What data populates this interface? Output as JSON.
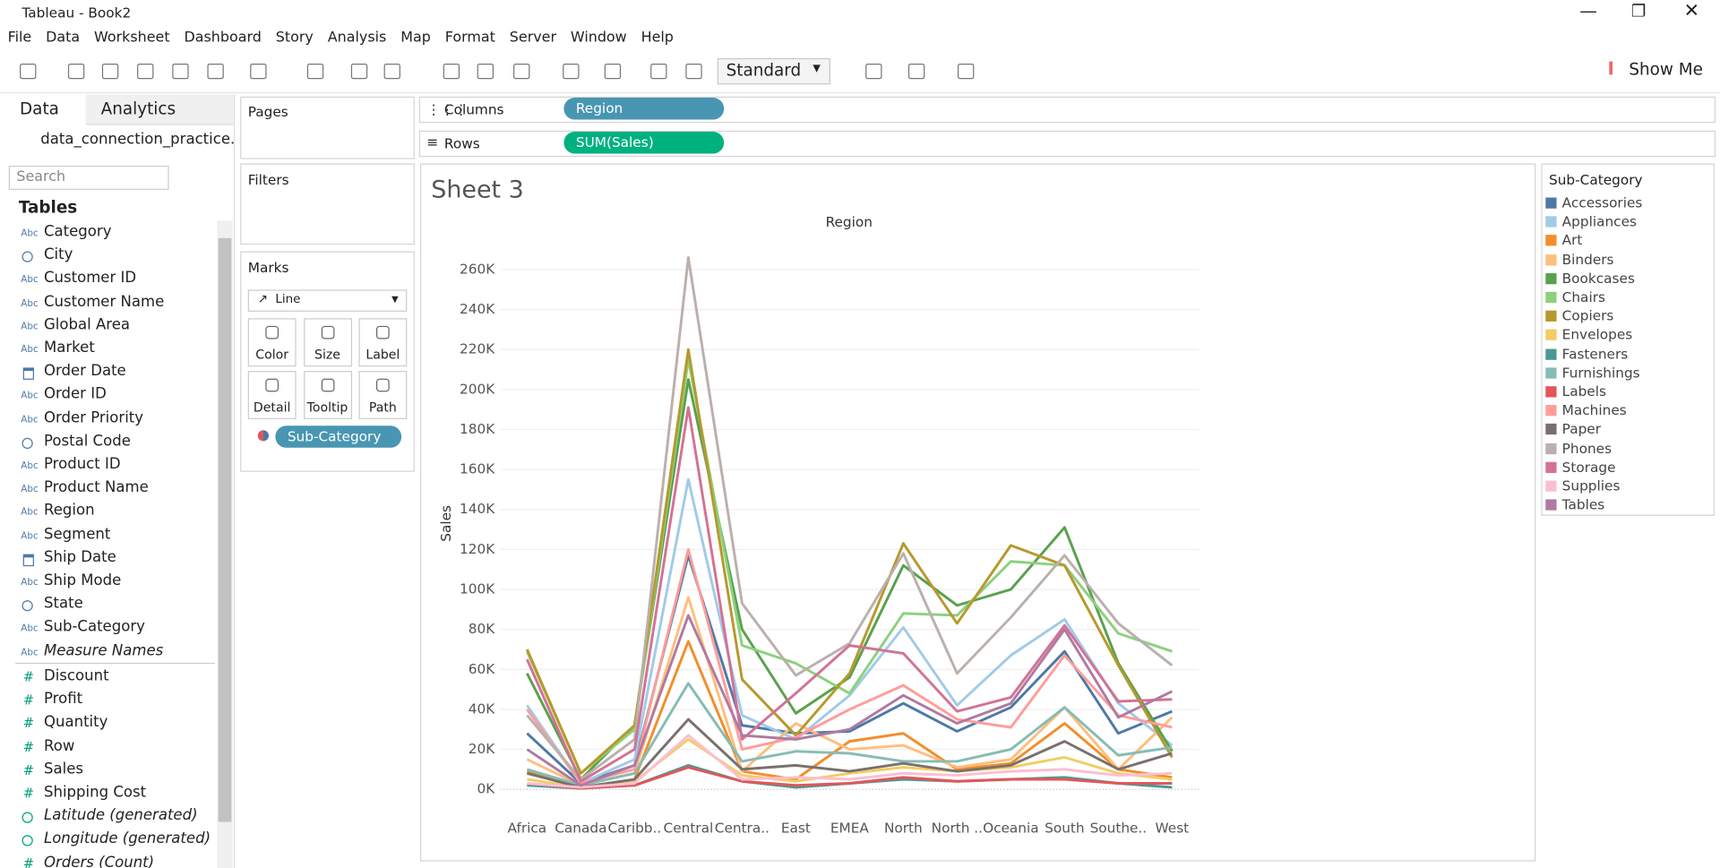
{
  "window": {
    "title": "Tableau - Book2"
  },
  "menu": [
    "File",
    "Data",
    "Worksheet",
    "Dashboard",
    "Story",
    "Analysis",
    "Map",
    "Format",
    "Server",
    "Window",
    "Help"
  ],
  "toolbar": {
    "view_size": "Standard",
    "show_me": "Show Me"
  },
  "data_pane": {
    "tabs": [
      "Data",
      "Analytics"
    ],
    "connection": "data_connection_practice...",
    "search_placeholder": "Search",
    "tables_header": "Tables",
    "abc_icon": "Abc",
    "number_icon": "#",
    "dimensions": [
      {
        "kind": "text",
        "name": "Category"
      },
      {
        "kind": "geo",
        "name": "City"
      },
      {
        "kind": "text",
        "name": "Customer ID"
      },
      {
        "kind": "text",
        "name": "Customer Name"
      },
      {
        "kind": "text",
        "name": "Global Area"
      },
      {
        "kind": "text",
        "name": "Market"
      },
      {
        "kind": "date",
        "name": "Order Date"
      },
      {
        "kind": "text",
        "name": "Order ID"
      },
      {
        "kind": "text",
        "name": "Order Priority"
      },
      {
        "kind": "geo",
        "name": "Postal Code"
      },
      {
        "kind": "text",
        "name": "Product ID"
      },
      {
        "kind": "text",
        "name": "Product Name"
      },
      {
        "kind": "text",
        "name": "Region"
      },
      {
        "kind": "text",
        "name": "Segment"
      },
      {
        "kind": "date",
        "name": "Ship Date"
      },
      {
        "kind": "text",
        "name": "Ship Mode"
      },
      {
        "kind": "geo",
        "name": "State"
      },
      {
        "kind": "text",
        "name": "Sub-Category"
      },
      {
        "kind": "text",
        "name": "Measure Names",
        "italic": true
      }
    ],
    "measures": [
      {
        "kind": "number",
        "name": "Discount"
      },
      {
        "kind": "number",
        "name": "Profit"
      },
      {
        "kind": "number",
        "name": "Quantity"
      },
      {
        "kind": "number",
        "name": "Row"
      },
      {
        "kind": "number",
        "name": "Sales"
      },
      {
        "kind": "number",
        "name": "Shipping Cost"
      },
      {
        "kind": "geo",
        "name": "Latitude (generated)",
        "italic": true
      },
      {
        "kind": "geo",
        "name": "Longitude (generated)",
        "italic": true
      },
      {
        "kind": "number",
        "name": "Orders (Count)",
        "italic": true
      }
    ]
  },
  "shelves": {
    "pages": "Pages",
    "filters": "Filters",
    "columns_label": "Columns",
    "columns_pill": "Region",
    "rows_label": "Rows",
    "rows_pill": "SUM(Sales)"
  },
  "marks": {
    "title": "Marks",
    "mark_type": "Line",
    "cards": [
      "Color",
      "Size",
      "Label",
      "Detail",
      "Tooltip",
      "Path"
    ],
    "color_pill": "Sub-Category"
  },
  "sheet": {
    "title": "Sheet 3"
  },
  "chart_data": {
    "type": "line",
    "x_label": "Region",
    "y_label": "Sales",
    "legend_title": "Sub-Category",
    "grid": true,
    "categories": [
      "Africa",
      "Canada",
      "Caribb..",
      "Central",
      "Centra..",
      "East",
      "EMEA",
      "North",
      "North ..",
      "Oceania",
      "South",
      "Southe..",
      "West"
    ],
    "ylim": [
      -13000,
      279000
    ],
    "yticks": [
      {
        "value": 0,
        "label": "0K"
      },
      {
        "value": 20000,
        "label": "20K"
      },
      {
        "value": 40000,
        "label": "40K"
      },
      {
        "value": 60000,
        "label": "60K"
      },
      {
        "value": 80000,
        "label": "80K"
      },
      {
        "value": 100000,
        "label": "100K"
      },
      {
        "value": 120000,
        "label": "120K"
      },
      {
        "value": 140000,
        "label": "140K"
      },
      {
        "value": 160000,
        "label": "160K"
      },
      {
        "value": 180000,
        "label": "180K"
      },
      {
        "value": 200000,
        "label": "200K"
      },
      {
        "value": 220000,
        "label": "220K"
      },
      {
        "value": 240000,
        "label": "240K"
      },
      {
        "value": 260000,
        "label": "260K"
      }
    ],
    "series": [
      {
        "name": "Accessories",
        "color": "#4e79a7",
        "values": [
          28000,
          3000,
          12000,
          117000,
          32000,
          28000,
          29000,
          43000,
          29000,
          41000,
          69000,
          28000,
          39000
        ]
      },
      {
        "name": "Appliances",
        "color": "#a0cbe8",
        "values": [
          42000,
          3000,
          15000,
          155000,
          37000,
          25000,
          47000,
          81000,
          42000,
          67000,
          85000,
          43000,
          22000
        ]
      },
      {
        "name": "Art",
        "color": "#f28e2b",
        "values": [
          9000,
          1000,
          5000,
          74000,
          9000,
          5000,
          24000,
          28000,
          10000,
          13000,
          33000,
          10000,
          6000
        ]
      },
      {
        "name": "Binders",
        "color": "#ffbe7d",
        "values": [
          15000,
          2000,
          8000,
          96000,
          9000,
          33000,
          20000,
          22000,
          11000,
          15000,
          41000,
          10000,
          36000
        ]
      },
      {
        "name": "Bookcases",
        "color": "#59a14f",
        "values": [
          58000,
          5000,
          32000,
          205000,
          80000,
          38000,
          56000,
          112000,
          92000,
          100000,
          131000,
          63000,
          19000
        ]
      },
      {
        "name": "Chairs",
        "color": "#8cd17d",
        "values": [
          69000,
          8000,
          30000,
          215000,
          72000,
          63000,
          48000,
          88000,
          87000,
          114000,
          112000,
          78000,
          69000
        ]
      },
      {
        "name": "Copiers",
        "color": "#b6992d",
        "values": [
          70000,
          8000,
          32000,
          220000,
          55000,
          27000,
          58000,
          123000,
          83000,
          122000,
          112000,
          62000,
          16000
        ]
      },
      {
        "name": "Envelopes",
        "color": "#f1ce63",
        "values": [
          5000,
          1000,
          4000,
          25000,
          7000,
          4000,
          8000,
          11000,
          9000,
          11000,
          16000,
          8000,
          5000
        ]
      },
      {
        "name": "Fasteners",
        "color": "#499894",
        "values": [
          2000,
          500,
          2000,
          12000,
          4000,
          1000,
          3000,
          5000,
          4000,
          5000,
          6000,
          3000,
          1000
        ]
      },
      {
        "name": "Furnishings",
        "color": "#86bcb6",
        "values": [
          10000,
          2000,
          8000,
          53000,
          14000,
          19000,
          18000,
          14000,
          14000,
          20000,
          41000,
          17000,
          21000
        ]
      },
      {
        "name": "Labels",
        "color": "#e15759",
        "values": [
          3000,
          500,
          2000,
          11000,
          4000,
          2000,
          3000,
          6000,
          4000,
          5000,
          5000,
          3000,
          3000
        ]
      },
      {
        "name": "Machines",
        "color": "#ff9d9a",
        "values": [
          40000,
          3000,
          10000,
          120000,
          20000,
          26000,
          40000,
          52000,
          35000,
          31000,
          67000,
          37000,
          31000
        ]
      },
      {
        "name": "Paper",
        "color": "#79706e",
        "values": [
          8000,
          1000,
          5000,
          35000,
          10000,
          12000,
          9000,
          13000,
          9000,
          12000,
          24000,
          10000,
          18000
        ]
      },
      {
        "name": "Phones",
        "color": "#bab0ac",
        "values": [
          37000,
          5000,
          25000,
          266000,
          93000,
          57000,
          73000,
          118000,
          58000,
          86000,
          117000,
          83000,
          62000
        ]
      },
      {
        "name": "Storage",
        "color": "#d37295",
        "values": [
          65000,
          4000,
          20000,
          191000,
          25000,
          48000,
          72000,
          68000,
          39000,
          46000,
          82000,
          44000,
          45000
        ]
      },
      {
        "name": "Supplies",
        "color": "#fabfd2",
        "values": [
          3000,
          1000,
          3000,
          27000,
          5000,
          6000,
          5000,
          8000,
          7000,
          9000,
          10000,
          7000,
          8000
        ]
      },
      {
        "name": "Tables",
        "color": "#b07aa1",
        "values": [
          20000,
          2000,
          12000,
          87000,
          27000,
          25000,
          30000,
          47000,
          33000,
          43000,
          80000,
          36000,
          49000
        ]
      }
    ]
  }
}
